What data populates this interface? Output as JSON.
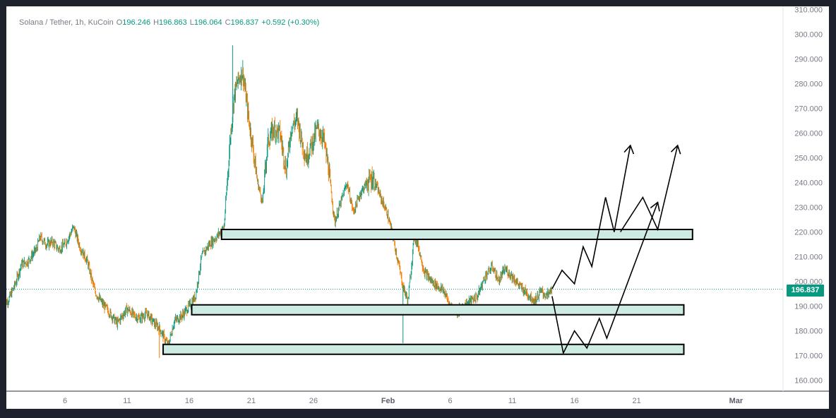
{
  "legend": {
    "symbol": "Solana / Tether, 1h, KuCoin",
    "open_label": "O",
    "open": "196.246",
    "high_label": "H",
    "high": "196.863",
    "low_label": "L",
    "low": "196.064",
    "close_label": "C",
    "close": "196.837",
    "change": "+0.592 (+0.30%)"
  },
  "last_price_label": "196.837",
  "colors": {
    "up": "#089981",
    "down": "#f57c00",
    "zone_fill": "#cdeae3",
    "zone_stroke": "#000000",
    "arrow": "#000000",
    "background": "#ffffff",
    "frame": "#1e222d"
  },
  "chart_data": {
    "type": "line",
    "title": "Solana / Tether, 1h, KuCoin",
    "xlabel": "",
    "ylabel": "",
    "ylim": [
      155,
      311
    ],
    "grid": false,
    "y_ticks": [
      "310.000",
      "300.000",
      "290.000",
      "280.000",
      "270.000",
      "260.000",
      "250.000",
      "240.000",
      "230.000",
      "220.000",
      "210.000",
      "200.000",
      "190.000",
      "180.000",
      "170.000",
      "160.000"
    ],
    "x_ticks": [
      {
        "label": "6",
        "day": 6
      },
      {
        "label": "11",
        "day": 11
      },
      {
        "label": "16",
        "day": 16
      },
      {
        "label": "21",
        "day": 21
      },
      {
        "label": "26",
        "day": 26
      },
      {
        "label": "Feb",
        "day": 32,
        "bold": true
      },
      {
        "label": "6",
        "day": 37
      },
      {
        "label": "11",
        "day": 42
      },
      {
        "label": "16",
        "day": 47
      },
      {
        "label": "21",
        "day": 52
      },
      {
        "label": "Mar",
        "day": 60,
        "bold": true
      }
    ],
    "series": [
      {
        "values_day": [
          1.1,
          1.5,
          2,
          2.5,
          3,
          3.7,
          4,
          4.5,
          5,
          5.5,
          6,
          6.7,
          7.2,
          7.8,
          8.4,
          9,
          9.5,
          10.2,
          11,
          11.6,
          12,
          12.6,
          13.2,
          13.6,
          14.3,
          14.8,
          15.4,
          16,
          16.5,
          17,
          17.6,
          18.2,
          18.8,
          19.3,
          19.6,
          19.9,
          20.3,
          20.8,
          21.1,
          21.5,
          21.9,
          22.3,
          22.8,
          23.3,
          23.8,
          24.2,
          24.7,
          25,
          25.4,
          25.9,
          26.3,
          26.8,
          27.2,
          27.7,
          28.2,
          28.7,
          29.2,
          29.8,
          30.3,
          30.8,
          31.4,
          31.9,
          32.4,
          32.8,
          33.2,
          33.6,
          34.1,
          34.4,
          34.9,
          35.5,
          36,
          36.5,
          37,
          37.6,
          38.1,
          38.6,
          39.2,
          39.8,
          40.4,
          40.9,
          41.4,
          42,
          42.6,
          43.2,
          43.8,
          44.3,
          44.8,
          45.2
        ],
        "values": [
          190,
          193,
          199,
          207,
          208,
          213,
          218,
          215,
          216,
          213,
          215,
          222,
          214,
          208,
          196,
          191,
          188,
          183,
          189,
          186,
          185,
          187,
          183,
          181,
          174,
          184,
          186,
          190,
          194,
          210,
          215,
          218,
          222,
          258,
          275,
          281,
          285,
          265,
          255,
          240,
          232,
          256,
          262,
          260,
          245,
          262,
          266,
          258,
          250,
          256,
          262,
          258,
          246,
          224,
          232,
          240,
          228,
          236,
          240,
          242,
          234,
          228,
          218,
          208,
          198,
          192,
          218,
          215,
          204,
          200,
          198,
          196,
          190,
          188,
          190,
          192,
          194,
          202,
          206,
          200,
          205,
          202,
          198,
          195,
          192,
          196,
          194,
          197
        ]
      }
    ],
    "zones": [
      {
        "y_low": 217,
        "y_high": 221,
        "from_day": 18.6,
        "to_day": 56.5
      },
      {
        "y_low": 186.5,
        "y_high": 190.5,
        "from_day": 16.2,
        "to_day": 55.8
      },
      {
        "y_low": 170.5,
        "y_high": 174.5,
        "from_day": 13.9,
        "to_day": 55.8
      }
    ],
    "projections": [
      {
        "points": [
          [
            45.2,
            197
          ],
          [
            46,
            204.5
          ],
          [
            47,
            199
          ],
          [
            47.7,
            214
          ],
          [
            48.4,
            206
          ],
          [
            49.5,
            234
          ],
          [
            50.2,
            220
          ],
          [
            51.5,
            255
          ]
        ]
      },
      {
        "points": [
          [
            50.7,
            220
          ],
          [
            52.5,
            234
          ],
          [
            53.7,
            221
          ],
          [
            55.3,
            255
          ]
        ]
      },
      {
        "points": [
          [
            45.2,
            194
          ],
          [
            46.1,
            171
          ],
          [
            47,
            180
          ],
          [
            48,
            173
          ],
          [
            49,
            185
          ],
          [
            49.6,
            177
          ],
          [
            53.7,
            232
          ]
        ]
      }
    ]
  }
}
